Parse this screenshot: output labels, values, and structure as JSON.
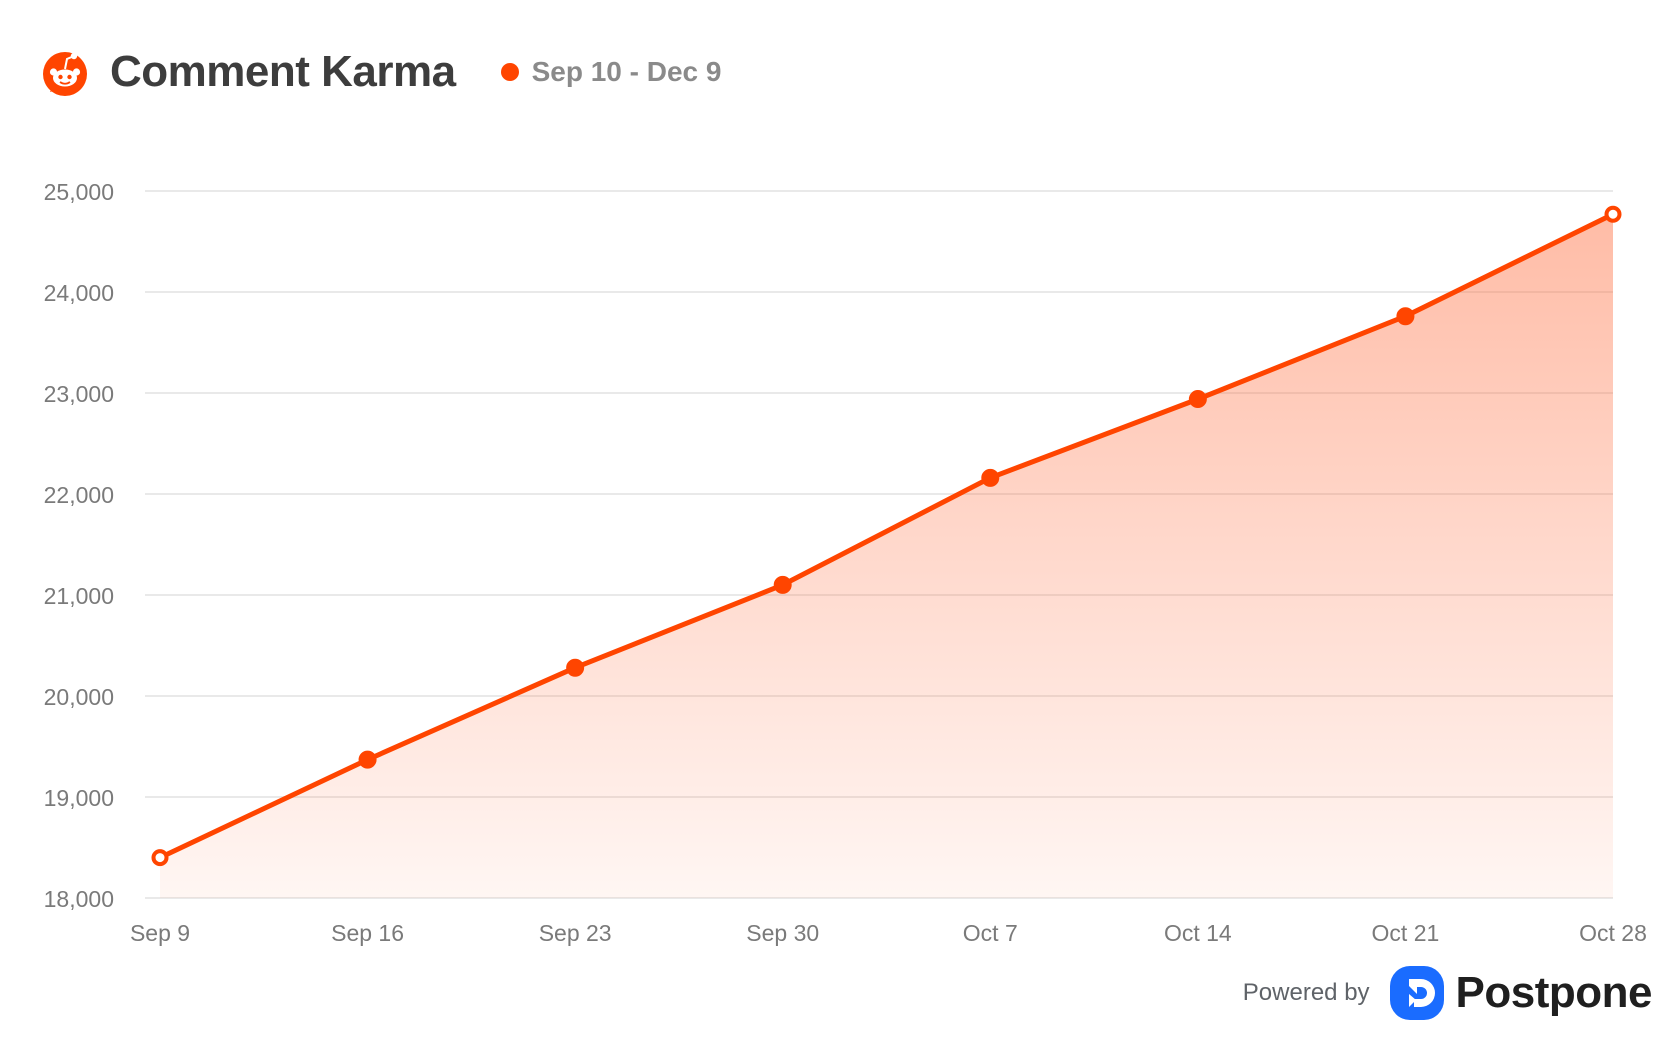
{
  "header": {
    "title": "Comment Karma",
    "legend_label": "Sep 10 - Dec 9",
    "logo_icon": "reddit-icon"
  },
  "footer": {
    "powered_by": "Powered by",
    "brand": "Postpone",
    "brand_icon": "postpone-logo-icon"
  },
  "colors": {
    "accent": "#ff4500",
    "grid": "#e9e9e9",
    "tick": "#7a7a7a",
    "brand_blue": "#1a6cff"
  },
  "chart_data": {
    "type": "area",
    "categories": [
      "Sep 9",
      "Sep 16",
      "Sep 23",
      "Sep 30",
      "Oct 7",
      "Oct 14",
      "Oct 21",
      "Oct 28"
    ],
    "series": [
      {
        "name": "Sep 10 - Dec 9",
        "values": [
          18400,
          19370,
          20280,
          21100,
          22160,
          22940,
          23760,
          24770
        ]
      }
    ],
    "ylim": [
      18000,
      25000
    ],
    "yticks": [
      18000,
      19000,
      20000,
      21000,
      22000,
      23000,
      24000,
      25000
    ],
    "grid": true,
    "legend_position": "top",
    "title": "Comment Karma",
    "xlabel": "",
    "ylabel": ""
  }
}
